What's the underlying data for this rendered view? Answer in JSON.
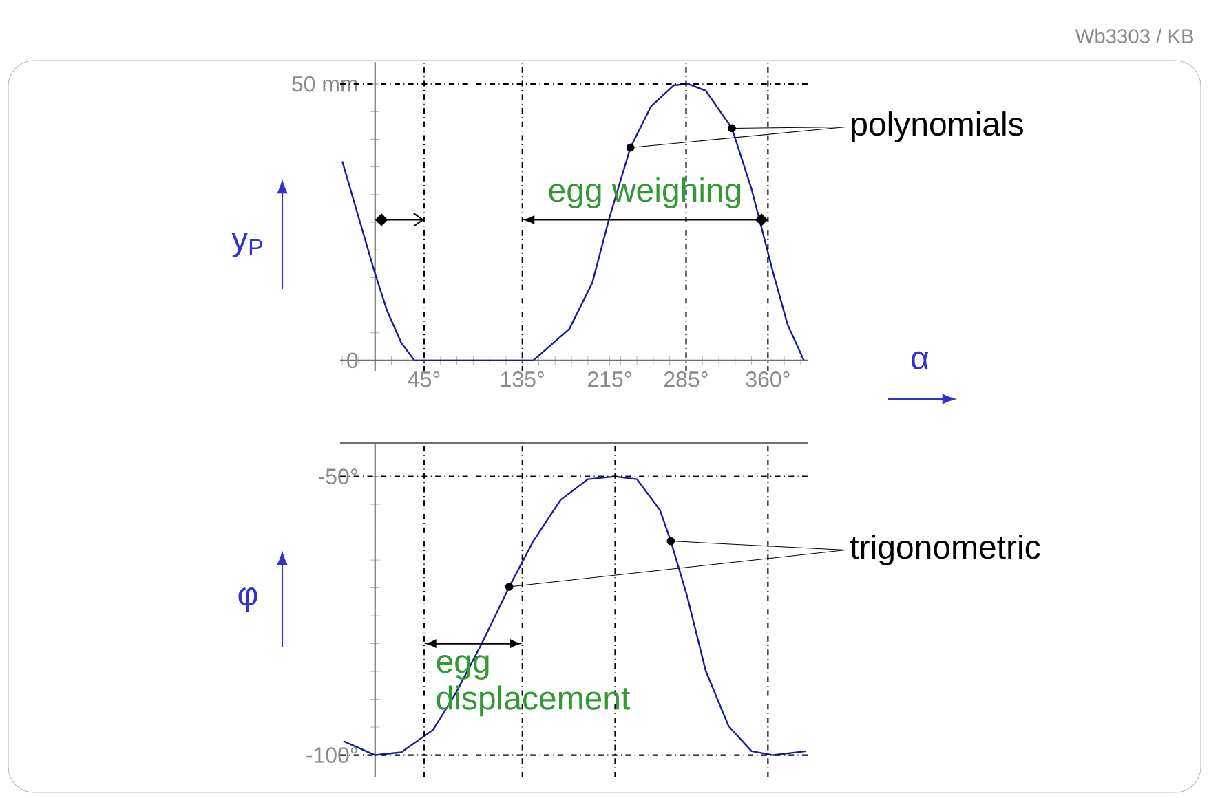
{
  "chart_data": [
    {
      "type": "line",
      "ylabel": "y$_{P}$",
      "xlabel": "α",
      "xlim": [
        -32,
        397
      ],
      "ylim": [
        -2,
        54
      ],
      "xticks": [
        {
          "value": -30,
          "label": null
        },
        {
          "value": -15,
          "label": null
        },
        {
          "value": 0,
          "label": null
        },
        {
          "value": 15,
          "label": null
        },
        {
          "value": 30,
          "label": null
        },
        {
          "value": 45,
          "label": "45°"
        },
        {
          "value": 60,
          "label": null
        },
        {
          "value": 75,
          "label": null
        },
        {
          "value": 90,
          "label": null
        },
        {
          "value": 105,
          "label": null
        },
        {
          "value": 120,
          "label": null
        },
        {
          "value": 135,
          "label": "135°"
        },
        {
          "value": 150,
          "label": null
        },
        {
          "value": 165,
          "label": null
        },
        {
          "value": 180,
          "label": null
        },
        {
          "value": 195,
          "label": null
        },
        {
          "value": 215,
          "label": "215°"
        },
        {
          "value": 225,
          "label": null
        },
        {
          "value": 240,
          "label": null
        },
        {
          "value": 255,
          "label": null
        },
        {
          "value": 270,
          "label": null
        },
        {
          "value": 285,
          "label": "285°"
        },
        {
          "value": 300,
          "label": null
        },
        {
          "value": 315,
          "label": null
        },
        {
          "value": 330,
          "label": null
        },
        {
          "value": 345,
          "label": null
        },
        {
          "value": 360,
          "label": "360°"
        },
        {
          "value": 375,
          "label": null
        },
        {
          "value": 390,
          "label": null
        }
      ],
      "yticks": [
        0,
        {
          "value": 5,
          "label": null
        },
        {
          "value": 10,
          "label": null
        },
        {
          "value": 15,
          "label": null
        },
        {
          "value": 20,
          "label": null
        },
        {
          "value": 25,
          "label": null
        },
        {
          "value": 30,
          "label": null
        },
        {
          "value": 35,
          "label": null
        },
        {
          "value": 40,
          "label": null
        },
        {
          "value": 45,
          "label": null
        },
        {
          "value": 50,
          "label": "50 mm"
        }
      ],
      "series": [
        {
          "color": "#1a1aa0",
          "x": [
            -30,
            0,
            11,
            24,
            36,
            135,
            145,
            178,
            199,
            215,
            234,
            253,
            274,
            287,
            303,
            327,
            345,
            365,
            378,
            393
          ],
          "values": [
            36,
            15.7,
            9,
            3.2,
            0,
            0,
            0,
            5.7,
            14,
            26,
            38.5,
            46,
            49.8,
            50,
            48.8,
            42,
            31,
            15.7,
            6.5,
            0
          ]
        },
        {
          "type": "scatter",
          "color": "#000000",
          "x": [
            234,
            327
          ],
          "values": [
            38.5,
            42
          ]
        }
      ],
      "ref_lines": [
        {
          "axis": "x",
          "value": 45,
          "line_style": "dashdot"
        },
        {
          "axis": "x",
          "value": 135,
          "line_style": "dashdot"
        },
        {
          "axis": "x",
          "value": 285,
          "line_style": "dashdot"
        },
        {
          "axis": "x",
          "value": 360,
          "line_style": "dashdot"
        },
        {
          "axis": "y",
          "value": 50,
          "line_style": "dashdot"
        }
      ],
      "annotations": [
        "polynomials",
        "egg weighing",
        "Wb3303 / KB"
      ]
    },
    {
      "type": "line",
      "ylabel": "φ",
      "xlim": [
        -32,
        397
      ],
      "ylim": [
        -104,
        -44
      ],
      "tick_labels": "y",
      "yticks": [
        {
          "value": -100,
          "label": "-100°"
        },
        {
          "value": -95,
          "label": null
        },
        {
          "value": -90,
          "label": null
        },
        {
          "value": -85,
          "label": null
        },
        {
          "value": -80,
          "label": null
        },
        {
          "value": -75,
          "label": null
        },
        {
          "value": -70,
          "label": null
        },
        {
          "value": -65,
          "label": null
        },
        {
          "value": -60,
          "label": null
        },
        {
          "value": -55,
          "label": null
        },
        {
          "value": -50,
          "label": "-50°"
        }
      ],
      "series": [
        {
          "color": "#1a1aa0",
          "x": [
            -29,
            0,
            24,
            53,
            74,
            98,
            123,
            145,
            170,
            195,
            220,
            240,
            261,
            271,
            286,
            303,
            324,
            345,
            365,
            395
          ],
          "values": [
            -97.5,
            -100,
            -99.5,
            -95.5,
            -88.9,
            -79.9,
            -69.8,
            -61.6,
            -54.2,
            -50.5,
            -50,
            -50.5,
            -56,
            -61.6,
            -71.5,
            -84.9,
            -94.8,
            -99.3,
            -100,
            -99.3
          ]
        },
        {
          "type": "scatter",
          "color": "#000000",
          "x": [
            123,
            271
          ],
          "values": [
            -69.8,
            -61.6
          ]
        }
      ],
      "ref_lines": [
        {
          "axis": "x",
          "value": 45,
          "line_style": "dashdot"
        },
        {
          "axis": "x",
          "value": 135,
          "line_style": "dashdot"
        },
        {
          "axis": "x",
          "value": 220,
          "line_style": "dashdot"
        },
        {
          "axis": "x",
          "value": 360,
          "line_style": "dashdot"
        },
        {
          "axis": "y",
          "value": -50,
          "line_style": "dashdot"
        },
        {
          "axis": "y",
          "value": -100,
          "line_style": "dashdot"
        }
      ],
      "annotations": [
        {
          "text": "trigonometric",
          "x": 271,
          "y": -61.6
        },
        "egg displacement"
      ]
    }
  ]
}
